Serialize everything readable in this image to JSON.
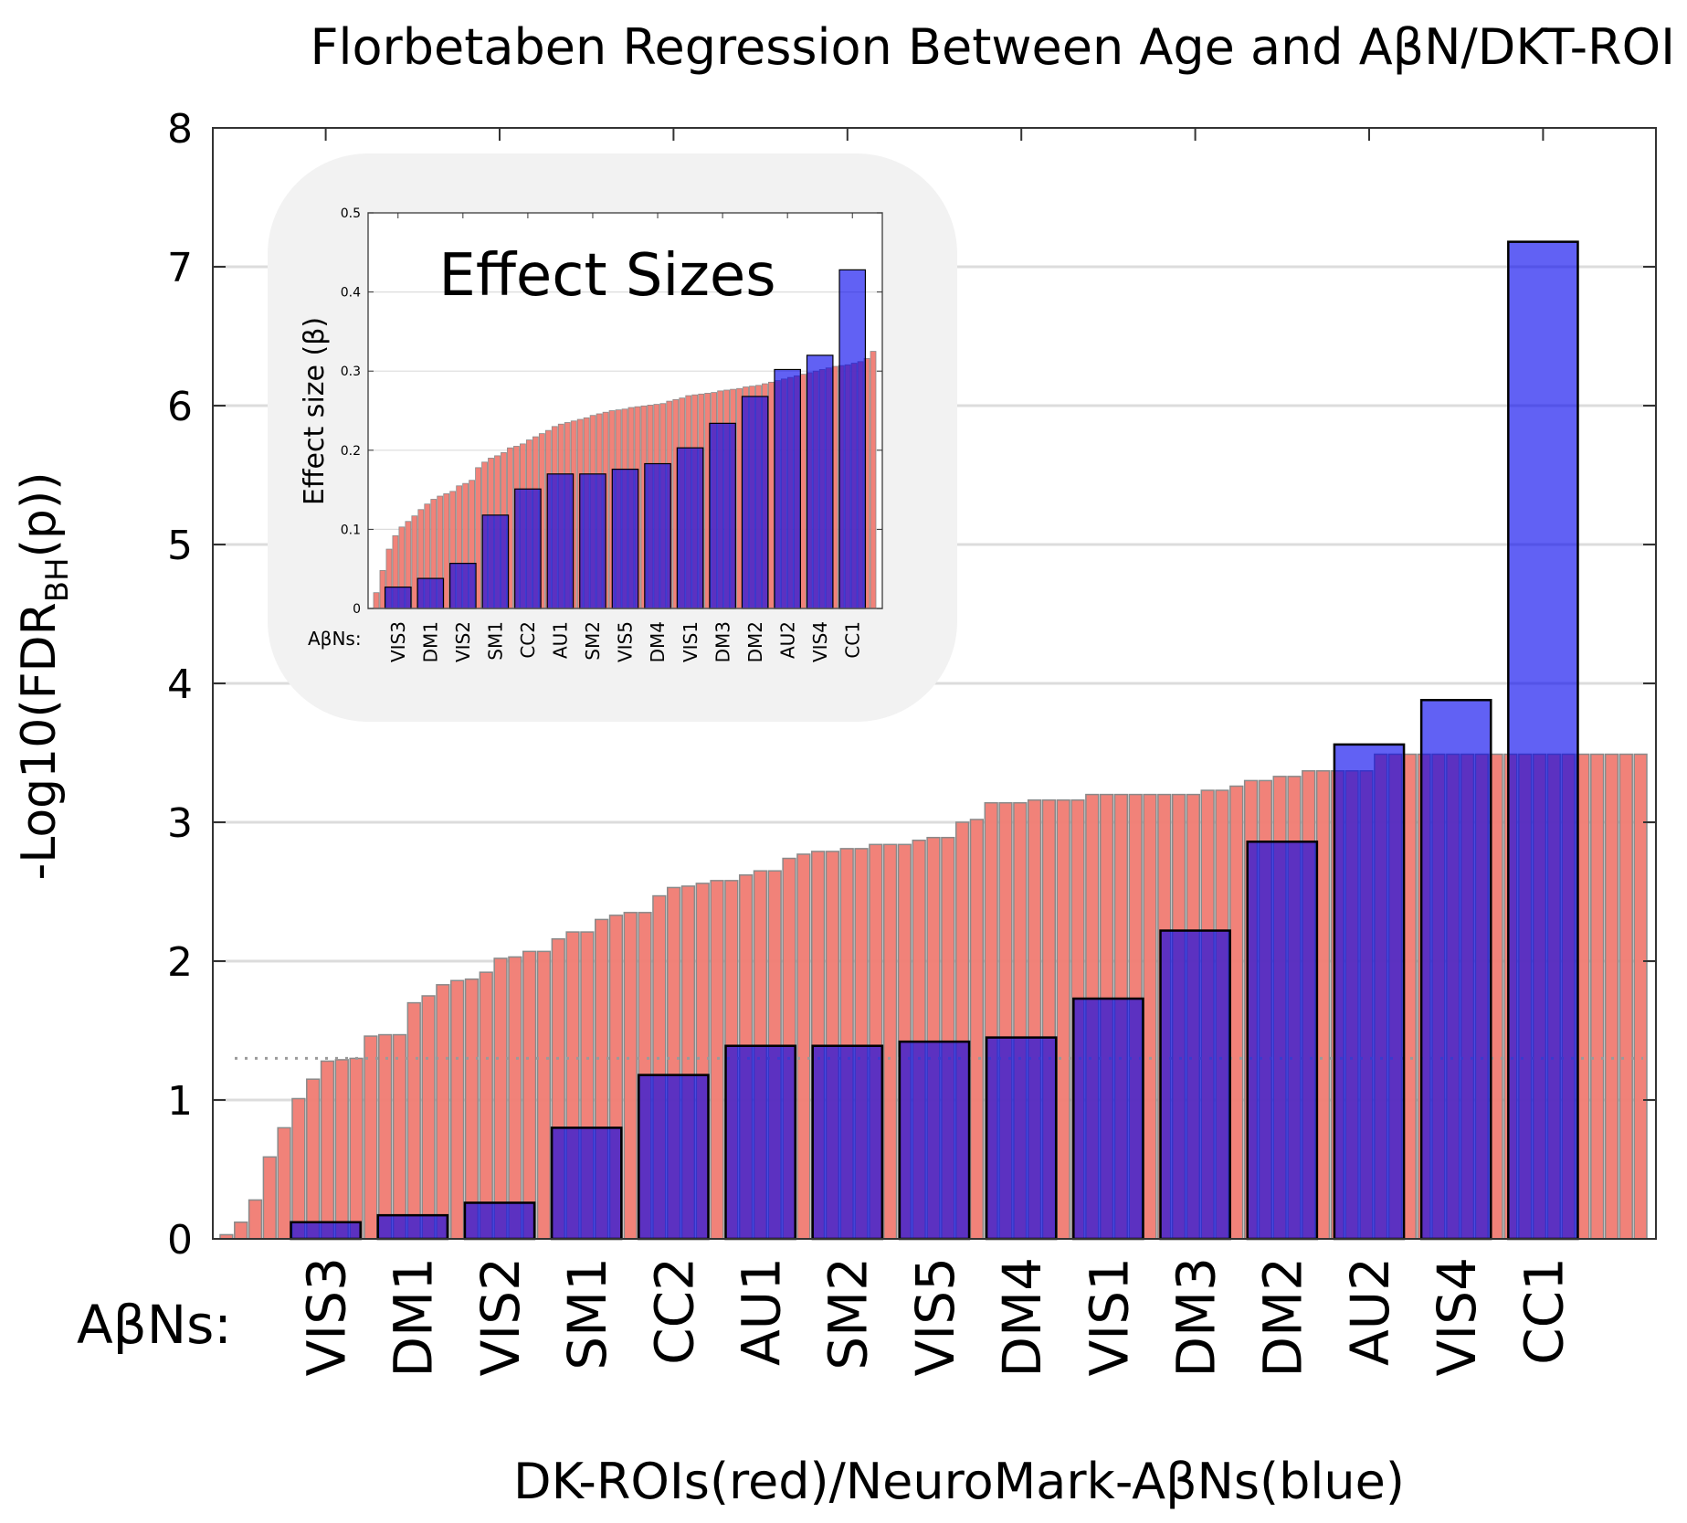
{
  "chart_data": [
    {
      "id": "main",
      "type": "bar",
      "title": "Florbetaben Regression Between Age and AβN/DKT-ROI",
      "ylabel_main": "-Log10(FDR",
      "ylabel_sub": "BH",
      "ylabel_tail": "(p))",
      "xlabel": "DK-ROIs(red)/NeuroMark-AβNs(blue)",
      "category_prefix": "AβNs:",
      "ylim": [
        0,
        8
      ],
      "yticks": [
        0,
        1,
        2,
        3,
        4,
        5,
        6,
        7,
        8
      ],
      "grid": true,
      "threshold_line": 1.3,
      "series": [
        {
          "name": "DK-ROIs",
          "color": "#f07b72",
          "values": [
            0.03,
            0.12,
            0.28,
            0.59,
            0.8,
            1.01,
            1.15,
            1.28,
            1.29,
            1.3,
            1.46,
            1.47,
            1.47,
            1.7,
            1.75,
            1.83,
            1.86,
            1.87,
            1.92,
            2.02,
            2.03,
            2.07,
            2.07,
            2.16,
            2.21,
            2.21,
            2.3,
            2.33,
            2.35,
            2.35,
            2.47,
            2.53,
            2.54,
            2.56,
            2.58,
            2.58,
            2.62,
            2.65,
            2.65,
            2.74,
            2.77,
            2.79,
            2.79,
            2.81,
            2.81,
            2.84,
            2.84,
            2.84,
            2.87,
            2.89,
            2.89,
            3.0,
            3.02,
            3.14,
            3.14,
            3.14,
            3.16,
            3.16,
            3.16,
            3.16,
            3.2,
            3.2,
            3.2,
            3.2,
            3.2,
            3.2,
            3.2,
            3.2,
            3.23,
            3.23,
            3.26,
            3.3,
            3.3,
            3.33,
            3.33,
            3.37,
            3.37,
            3.37,
            3.37,
            3.37,
            3.49,
            3.49,
            3.49,
            3.49,
            3.49,
            3.49,
            3.49,
            3.49,
            3.49,
            3.49,
            3.49,
            3.49,
            3.49,
            3.49,
            3.49,
            3.49,
            3.49,
            3.49,
            3.49
          ]
        },
        {
          "name": "NeuroMark-AβNs",
          "color": "#0000ee",
          "categories": [
            "VIS3",
            "DM1",
            "VIS2",
            "SM1",
            "CC2",
            "AU1",
            "SM2",
            "VIS5",
            "DM4",
            "VIS1",
            "DM3",
            "DM2",
            "AU2",
            "VIS4",
            "CC1"
          ],
          "values": [
            0.12,
            0.17,
            0.26,
            0.8,
            1.18,
            1.39,
            1.39,
            1.42,
            1.45,
            1.73,
            2.22,
            2.86,
            3.56,
            3.88,
            7.18
          ]
        }
      ]
    },
    {
      "id": "inset",
      "type": "bar",
      "title": "Effect Sizes",
      "ylabel": "Effect size (β)",
      "category_prefix": "AβNs:",
      "ylim": [
        0,
        0.5
      ],
      "yticks": [
        0,
        0.1,
        0.2,
        0.3,
        0.4,
        0.5
      ],
      "ytick_labels": [
        "0",
        "0.1",
        "0.2",
        "0.3",
        "0.4",
        "0.5"
      ],
      "grid": true,
      "series": [
        {
          "name": "DK-ROIs",
          "color": "#f07b72",
          "values": [
            0.02,
            0.048,
            0.075,
            0.092,
            0.103,
            0.11,
            0.117,
            0.125,
            0.132,
            0.138,
            0.142,
            0.145,
            0.148,
            0.155,
            0.158,
            0.162,
            0.178,
            0.185,
            0.19,
            0.193,
            0.197,
            0.203,
            0.205,
            0.208,
            0.213,
            0.217,
            0.221,
            0.225,
            0.23,
            0.233,
            0.235,
            0.237,
            0.239,
            0.241,
            0.244,
            0.246,
            0.248,
            0.25,
            0.251,
            0.252,
            0.254,
            0.255,
            0.256,
            0.257,
            0.258,
            0.259,
            0.262,
            0.264,
            0.266,
            0.269,
            0.27,
            0.271,
            0.272,
            0.273,
            0.275,
            0.276,
            0.277,
            0.278,
            0.28,
            0.281,
            0.282,
            0.284,
            0.286,
            0.288,
            0.29,
            0.292,
            0.294,
            0.296,
            0.298,
            0.3,
            0.302,
            0.304,
            0.306,
            0.307,
            0.308,
            0.31,
            0.312,
            0.316,
            0.325
          ]
        },
        {
          "name": "NeuroMark-AβNs",
          "color": "#0000ee",
          "categories": [
            "VIS3",
            "DM1",
            "VIS2",
            "SM1",
            "CC2",
            "AU1",
            "SM2",
            "VIS5",
            "DM4",
            "VIS1",
            "DM3",
            "DM2",
            "AU2",
            "VIS4",
            "CC1"
          ],
          "values": [
            0.027,
            0.038,
            0.057,
            0.118,
            0.151,
            0.17,
            0.17,
            0.176,
            0.183,
            0.203,
            0.234,
            0.268,
            0.302,
            0.32,
            0.428
          ]
        }
      ]
    }
  ]
}
